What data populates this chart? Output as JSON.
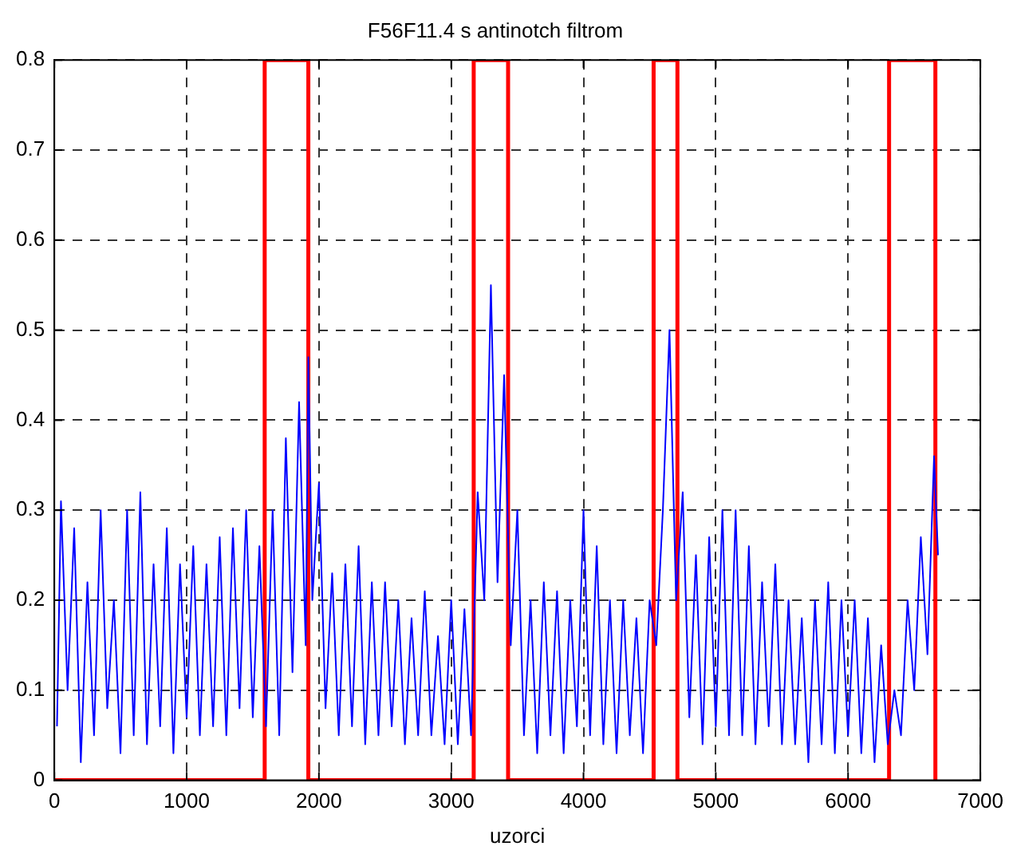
{
  "chart_data": {
    "type": "line",
    "title": "F56F11.4 s antinotch filtrom",
    "xlabel": "uzorci",
    "xlim": [
      0,
      7000
    ],
    "xticks": [
      0,
      1000,
      2000,
      3000,
      4000,
      5000,
      6000,
      7000
    ],
    "ylim": [
      0,
      0.8
    ],
    "yticks": [
      0,
      0.1,
      0.2,
      0.3,
      0.4,
      0.5,
      0.6,
      0.7,
      0.8
    ],
    "grid": true,
    "legend": false,
    "marker": "none",
    "line_style": "solid",
    "series": [
      {
        "color": "#0000ff",
        "x": [
          20,
          50,
          100,
          150,
          200,
          250,
          300,
          350,
          400,
          450,
          500,
          550,
          600,
          650,
          700,
          750,
          800,
          850,
          900,
          950,
          1000,
          1050,
          1100,
          1150,
          1200,
          1250,
          1300,
          1350,
          1400,
          1450,
          1500,
          1550,
          1600,
          1650,
          1700,
          1750,
          1800,
          1850,
          1900,
          1920,
          1950,
          2000,
          2050,
          2100,
          2150,
          2200,
          2250,
          2300,
          2350,
          2400,
          2450,
          2500,
          2550,
          2600,
          2650,
          2700,
          2750,
          2800,
          2850,
          2900,
          2950,
          3000,
          3050,
          3100,
          3150,
          3200,
          3250,
          3300,
          3350,
          3400,
          3450,
          3500,
          3550,
          3600,
          3650,
          3700,
          3750,
          3800,
          3850,
          3900,
          3950,
          4000,
          4050,
          4100,
          4150,
          4200,
          4250,
          4300,
          4350,
          4400,
          4450,
          4500,
          4550,
          4600,
          4650,
          4700,
          4750,
          4800,
          4850,
          4900,
          4950,
          5000,
          5050,
          5100,
          5150,
          5200,
          5250,
          5300,
          5350,
          5400,
          5450,
          5500,
          5550,
          5600,
          5650,
          5700,
          5750,
          5800,
          5850,
          5900,
          5950,
          6000,
          6050,
          6100,
          6150,
          6200,
          6250,
          6300,
          6350,
          6400,
          6450,
          6500,
          6550,
          6600,
          6650,
          6680
        ],
        "values": [
          0.06,
          0.31,
          0.1,
          0.28,
          0.02,
          0.22,
          0.05,
          0.3,
          0.08,
          0.2,
          0.03,
          0.3,
          0.05,
          0.32,
          0.04,
          0.24,
          0.06,
          0.28,
          0.03,
          0.24,
          0.07,
          0.26,
          0.05,
          0.24,
          0.06,
          0.27,
          0.05,
          0.28,
          0.08,
          0.3,
          0.07,
          0.26,
          0.06,
          0.3,
          0.05,
          0.38,
          0.12,
          0.42,
          0.15,
          0.47,
          0.2,
          0.33,
          0.08,
          0.23,
          0.05,
          0.24,
          0.06,
          0.26,
          0.04,
          0.22,
          0.05,
          0.22,
          0.06,
          0.2,
          0.04,
          0.18,
          0.05,
          0.21,
          0.05,
          0.16,
          0.04,
          0.2,
          0.04,
          0.19,
          0.05,
          0.32,
          0.2,
          0.55,
          0.22,
          0.45,
          0.15,
          0.3,
          0.05,
          0.2,
          0.03,
          0.22,
          0.05,
          0.21,
          0.03,
          0.2,
          0.06,
          0.3,
          0.05,
          0.26,
          0.04,
          0.2,
          0.03,
          0.2,
          0.05,
          0.18,
          0.03,
          0.2,
          0.15,
          0.3,
          0.5,
          0.2,
          0.32,
          0.07,
          0.25,
          0.04,
          0.27,
          0.06,
          0.3,
          0.05,
          0.3,
          0.05,
          0.26,
          0.04,
          0.22,
          0.06,
          0.24,
          0.04,
          0.2,
          0.04,
          0.18,
          0.02,
          0.2,
          0.04,
          0.22,
          0.03,
          0.2,
          0.05,
          0.2,
          0.03,
          0.18,
          0.02,
          0.15,
          0.04,
          0.1,
          0.05,
          0.2,
          0.1,
          0.27,
          0.14,
          0.36,
          0.25
        ]
      },
      {
        "color": "#ff0000",
        "x": [
          0,
          1590,
          1590,
          1920,
          1920,
          3170,
          3170,
          3430,
          3430,
          4530,
          4530,
          4710,
          4710,
          6310,
          6310,
          6660,
          6660
        ],
        "values": [
          0,
          0,
          0.8,
          0.8,
          0,
          0,
          0.8,
          0.8,
          0,
          0,
          0.8,
          0.8,
          0,
          0,
          0.8,
          0.8,
          0
        ]
      }
    ]
  }
}
